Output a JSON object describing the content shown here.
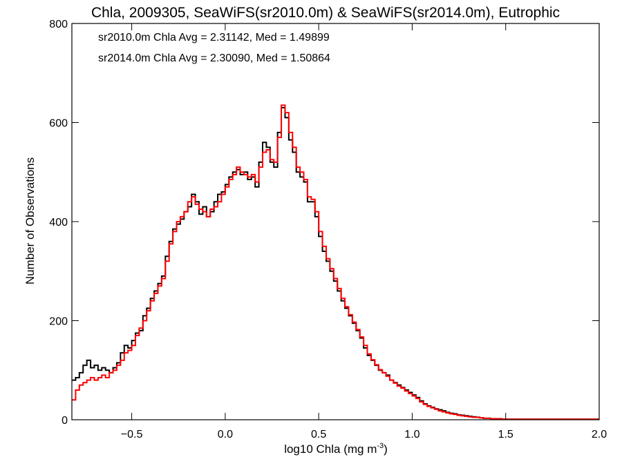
{
  "chart_data": {
    "type": "line",
    "title": "Chla, 2009305, SeaWiFS(sr2010.0m) & SeaWiFS(sr2014.0m), Eutrophic",
    "xlabel": "log10 Chla (mg m",
    "xlabel_sup": "-3",
    "xlabel_suffix": ")",
    "ylabel": "Number of Observations",
    "xlim": [
      -0.82,
      2.0
    ],
    "ylim": [
      0,
      800
    ],
    "xticks": [
      -0.5,
      0.0,
      0.5,
      1.0,
      1.5,
      2.0
    ],
    "xtick_labels": [
      "−0.5",
      "0.0",
      "0.5",
      "1.0",
      "1.5",
      "2.0"
    ],
    "yticks": [
      0,
      200,
      400,
      600,
      800
    ],
    "ytick_labels": [
      "0",
      "200",
      "400",
      "600",
      "800"
    ],
    "grid": false,
    "legend_position": "top-left",
    "series": [
      {
        "name": "sr2010.0m",
        "legend_text": "sr2010.0m Chla Avg = 2.31142, Med = 1.49899",
        "color": "#000000",
        "style": "step",
        "x": [
          -0.82,
          -0.8,
          -0.78,
          -0.76,
          -0.74,
          -0.72,
          -0.7,
          -0.68,
          -0.66,
          -0.64,
          -0.62,
          -0.6,
          -0.58,
          -0.56,
          -0.54,
          -0.52,
          -0.5,
          -0.48,
          -0.46,
          -0.44,
          -0.42,
          -0.4,
          -0.38,
          -0.36,
          -0.34,
          -0.32,
          -0.3,
          -0.28,
          -0.26,
          -0.24,
          -0.22,
          -0.2,
          -0.18,
          -0.16,
          -0.14,
          -0.12,
          -0.1,
          -0.08,
          -0.06,
          -0.04,
          -0.02,
          0.0,
          0.02,
          0.04,
          0.06,
          0.08,
          0.1,
          0.12,
          0.14,
          0.16,
          0.18,
          0.2,
          0.22,
          0.24,
          0.26,
          0.28,
          0.3,
          0.32,
          0.34,
          0.36,
          0.38,
          0.4,
          0.42,
          0.44,
          0.46,
          0.48,
          0.5,
          0.52,
          0.54,
          0.56,
          0.58,
          0.6,
          0.62,
          0.64,
          0.66,
          0.68,
          0.7,
          0.72,
          0.74,
          0.76,
          0.78,
          0.8,
          0.82,
          0.84,
          0.86,
          0.88,
          0.9,
          0.92,
          0.94,
          0.96,
          0.98,
          1.0,
          1.02,
          1.04,
          1.06,
          1.08,
          1.1,
          1.12,
          1.14,
          1.16,
          1.18,
          1.2,
          1.22,
          1.24,
          1.26,
          1.28,
          1.3,
          1.32,
          1.34,
          1.36,
          1.38,
          1.4,
          1.42,
          1.44,
          1.46,
          1.48,
          1.5,
          1.52,
          1.54,
          1.56,
          1.58,
          1.6,
          1.62,
          1.64,
          1.66,
          1.68,
          1.7,
          1.72,
          1.74,
          1.76,
          1.78,
          1.8,
          1.82,
          1.84,
          1.86,
          1.88,
          1.9,
          1.92,
          1.94,
          1.96,
          1.98
        ],
        "values": [
          80,
          85,
          95,
          110,
          120,
          105,
          110,
          100,
          105,
          100,
          95,
          105,
          115,
          135,
          150,
          145,
          160,
          175,
          180,
          210,
          225,
          245,
          260,
          275,
          290,
          330,
          360,
          385,
          395,
          405,
          420,
          430,
          455,
          440,
          415,
          430,
          410,
          420,
          440,
          455,
          460,
          475,
          490,
          500,
          505,
          495,
          500,
          485,
          490,
          470,
          520,
          560,
          550,
          520,
          510,
          580,
          630,
          610,
          565,
          540,
          500,
          490,
          480,
          440,
          440,
          410,
          370,
          340,
          320,
          300,
          280,
          260,
          240,
          225,
          210,
          195,
          180,
          165,
          145,
          130,
          120,
          110,
          100,
          95,
          90,
          80,
          75,
          70,
          65,
          60,
          55,
          50,
          45,
          38,
          32,
          28,
          25,
          22,
          20,
          18,
          15,
          13,
          12,
          10,
          9,
          8,
          7,
          6,
          5,
          4,
          3,
          3,
          2,
          2,
          2,
          1,
          1,
          1,
          1,
          1,
          1,
          1,
          1,
          1,
          1,
          1,
          1,
          1,
          1,
          1,
          1,
          1,
          1,
          1,
          1,
          1,
          1,
          1,
          1,
          1,
          1
        ]
      },
      {
        "name": "sr2014.0m",
        "legend_text": "sr2014.0m Chla Avg = 2.30090, Med = 1.50864",
        "color": "#ff0000",
        "style": "step",
        "x": [
          -0.82,
          -0.8,
          -0.78,
          -0.76,
          -0.74,
          -0.72,
          -0.7,
          -0.68,
          -0.66,
          -0.64,
          -0.62,
          -0.6,
          -0.58,
          -0.56,
          -0.54,
          -0.52,
          -0.5,
          -0.48,
          -0.46,
          -0.44,
          -0.42,
          -0.4,
          -0.38,
          -0.36,
          -0.34,
          -0.32,
          -0.3,
          -0.28,
          -0.26,
          -0.24,
          -0.22,
          -0.2,
          -0.18,
          -0.16,
          -0.14,
          -0.12,
          -0.1,
          -0.08,
          -0.06,
          -0.04,
          -0.02,
          0.0,
          0.02,
          0.04,
          0.06,
          0.08,
          0.1,
          0.12,
          0.14,
          0.16,
          0.18,
          0.2,
          0.22,
          0.24,
          0.26,
          0.28,
          0.3,
          0.32,
          0.34,
          0.36,
          0.38,
          0.4,
          0.42,
          0.44,
          0.46,
          0.48,
          0.5,
          0.52,
          0.54,
          0.56,
          0.58,
          0.6,
          0.62,
          0.64,
          0.66,
          0.68,
          0.7,
          0.72,
          0.74,
          0.76,
          0.78,
          0.8,
          0.82,
          0.84,
          0.86,
          0.88,
          0.9,
          0.92,
          0.94,
          0.96,
          0.98,
          1.0,
          1.02,
          1.04,
          1.06,
          1.08,
          1.1,
          1.12,
          1.14,
          1.16,
          1.18,
          1.2,
          1.22,
          1.24,
          1.26,
          1.28,
          1.3,
          1.32,
          1.34,
          1.36,
          1.38,
          1.4,
          1.42,
          1.44,
          1.46,
          1.48,
          1.5,
          1.52,
          1.54,
          1.56,
          1.58,
          1.6,
          1.62,
          1.64,
          1.66,
          1.68,
          1.7,
          1.72,
          1.74,
          1.76,
          1.78,
          1.8,
          1.82,
          1.84,
          1.86,
          1.88,
          1.9,
          1.92,
          1.94,
          1.96,
          1.98
        ],
        "values": [
          40,
          60,
          70,
          75,
          80,
          85,
          80,
          85,
          90,
          85,
          95,
          100,
          110,
          120,
          135,
          140,
          150,
          170,
          185,
          200,
          220,
          240,
          255,
          270,
          285,
          320,
          355,
          380,
          400,
          410,
          420,
          440,
          450,
          435,
          425,
          420,
          410,
          425,
          430,
          440,
          455,
          470,
          485,
          495,
          510,
          500,
          495,
          490,
          495,
          480,
          510,
          540,
          545,
          525,
          520,
          570,
          635,
          620,
          580,
          550,
          510,
          500,
          485,
          450,
          445,
          420,
          380,
          350,
          325,
          305,
          285,
          265,
          245,
          228,
          212,
          197,
          182,
          167,
          150,
          133,
          121,
          111,
          101,
          95,
          88,
          80,
          74,
          68,
          64,
          58,
          53,
          48,
          43,
          36,
          31,
          27,
          24,
          21,
          18,
          16,
          14,
          12,
          11,
          9,
          8,
          7,
          6,
          5,
          5,
          4,
          3,
          3,
          2,
          2,
          2,
          1,
          1,
          1,
          1,
          1,
          1,
          1,
          1,
          1,
          1,
          1,
          1,
          1,
          1,
          1,
          1,
          1,
          1,
          1,
          1,
          1,
          1,
          1,
          1,
          1,
          1
        ]
      }
    ]
  }
}
